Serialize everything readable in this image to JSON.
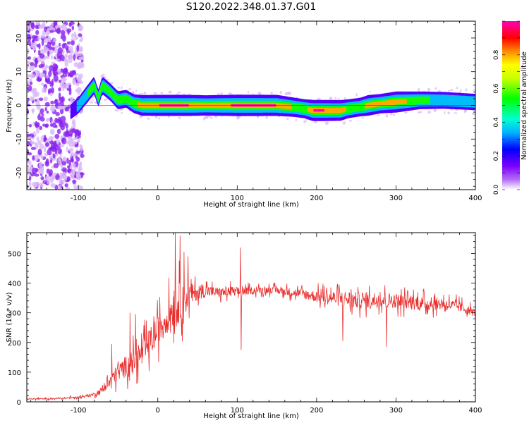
{
  "title": "S120.2022.348.01.37.G01",
  "colors": {
    "snr_line": "#e8302f",
    "axis": "#000000",
    "scatter_purple": "#8a22f0",
    "scatter_light": "#d9b8f8"
  },
  "chart_data": [
    {
      "type": "heatmap",
      "xlabel": "Height of straight line (km)",
      "ylabel": "Frequency (Hz)",
      "xlim": [
        -165,
        400
      ],
      "ylim": [
        -25,
        25
      ],
      "xticks": [
        -100,
        0,
        100,
        200,
        300,
        400
      ],
      "xtick_labels": [
        "-100",
        "0",
        "100",
        "200",
        "300",
        "400"
      ],
      "yticks": [
        -20,
        -10,
        0,
        10,
        20
      ],
      "ytick_labels": [
        "-20",
        "-10",
        "0",
        "10",
        "20"
      ],
      "colorbar": {
        "label": "Normalized spectral amplitude",
        "range": [
          0,
          1
        ],
        "ticks": [
          0,
          0.2,
          0.4,
          0.6,
          0.8
        ],
        "tick_labels": [
          "0.0",
          "0.2",
          "0.4",
          "0.6",
          "0.8"
        ],
        "colormap": "hsv"
      },
      "ridge": {
        "x": [
          -110,
          -100,
          -90,
          -80,
          -75,
          -70,
          -60,
          -50,
          -40,
          -30,
          -20,
          0,
          40,
          60,
          100,
          150,
          170,
          185,
          195,
          210,
          230,
          240,
          255,
          265,
          280,
          300,
          330,
          360,
          400
        ],
        "frequency": [
          -2,
          0,
          3,
          6,
          2,
          6,
          4,
          1.5,
          2,
          0.5,
          0,
          0,
          0,
          0,
          0,
          0,
          -0.5,
          -1,
          -1.5,
          -1.5,
          -1.5,
          -1,
          -0.5,
          0,
          0.5,
          1,
          1.5,
          1.5,
          1
        ],
        "amplitude": [
          0.2,
          0.35,
          0.5,
          0.55,
          0.5,
          0.55,
          0.5,
          0.6,
          0.55,
          0.7,
          0.9,
          0.95,
          0.95,
          0.85,
          0.98,
          0.95,
          0.75,
          0.7,
          0.95,
          0.95,
          0.9,
          0.7,
          0.65,
          0.9,
          0.75,
          0.95,
          0.55,
          0.45,
          0.4
        ]
      }
    },
    {
      "type": "line",
      "xlabel": "Height of straight line (km)",
      "ylabel": "SNR (10 * v/v)",
      "xlim": [
        -165,
        400
      ],
      "ylim": [
        0,
        570
      ],
      "xticks": [
        -100,
        0,
        100,
        200,
        300,
        400
      ],
      "xtick_labels": [
        "-100",
        "0",
        "100",
        "200",
        "300",
        "400"
      ],
      "yticks": [
        0,
        100,
        200,
        300,
        400,
        500
      ],
      "ytick_labels": [
        "0",
        "100",
        "200",
        "300",
        "400",
        "500"
      ],
      "series": [
        {
          "x": [
            -165,
            -140,
            -120,
            -100,
            -90,
            -80,
            -70,
            -60,
            -50,
            -40,
            -30,
            -20,
            -10,
            0,
            10,
            20,
            30,
            40,
            50,
            60,
            70,
            80,
            90,
            100,
            120,
            140,
            160,
            180,
            200,
            220,
            240,
            260,
            280,
            300,
            320,
            340,
            360,
            380,
            400
          ],
          "values": [
            10,
            10,
            12,
            15,
            20,
            25,
            40,
            70,
            100,
            120,
            140,
            160,
            200,
            240,
            280,
            320,
            340,
            360,
            370,
            375,
            370,
            368,
            372,
            370,
            375,
            378,
            372,
            365,
            355,
            350,
            345,
            340,
            345,
            340,
            335,
            330,
            330,
            320,
            300
          ],
          "spread": [
            5,
            5,
            6,
            8,
            10,
            15,
            25,
            45,
            70,
            80,
            90,
            100,
            110,
            110,
            120,
            140,
            150,
            90,
            60,
            50,
            40,
            40,
            40,
            35,
            25,
            25,
            30,
            35,
            45,
            55,
            65,
            60,
            60,
            55,
            55,
            50,
            45,
            40,
            30
          ],
          "spike_x": [
            -58,
            -35,
            -28,
            22,
            28,
            33,
            38,
            104,
            105,
            233,
            288
          ],
          "spike_values": [
            195,
            300,
            295,
            570,
            560,
            505,
            490,
            520,
            175,
            205,
            185
          ]
        }
      ]
    }
  ]
}
